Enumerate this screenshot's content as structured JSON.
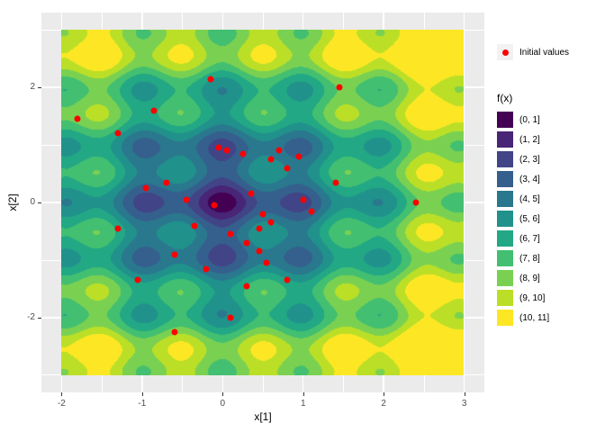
{
  "panel": {
    "background": "#EBEBEB",
    "grid_color": "#FFFFFF",
    "tick_color": "#333333",
    "tick_label_color": "#4D4D4D"
  },
  "chart_data": {
    "type": "heatmap",
    "subtype": "filled-contour",
    "title": "",
    "xlabel": "x[1]",
    "ylabel": "x[2]",
    "x_range": [
      -2,
      3
    ],
    "y_range": [
      -3,
      3
    ],
    "x_ticks": [
      {
        "v": -2,
        "label": "-2"
      },
      {
        "v": -1,
        "label": "-1"
      },
      {
        "v": 0,
        "label": "0"
      },
      {
        "v": 1,
        "label": "1"
      },
      {
        "v": 2,
        "label": "2"
      },
      {
        "v": 3,
        "label": "3"
      }
    ],
    "y_ticks": [
      {
        "v": -2,
        "label": "-2"
      },
      {
        "v": 0,
        "label": "0"
      },
      {
        "v": 2,
        "label": "2"
      }
    ],
    "x_minor": [
      -1.5,
      -0.5,
      0.5,
      1.5,
      2.5
    ],
    "y_minor": [
      -3,
      -1,
      1,
      3
    ],
    "surface_function_approx": "f(x) = 2.5*sqrt(x1^2+x2^2) + 1.0*(2 - cos(2*pi*x1) - cos(2*pi*x2)); minimum 0 at origin, local dimples at integer grid points, values banded into unit intervals (0,1] ... (10,11]",
    "legend_title": "f(x)",
    "levels": [
      {
        "label": "(0, 1]",
        "color": "#440154"
      },
      {
        "label": "(1, 2]",
        "color": "#482576"
      },
      {
        "label": "(2, 3]",
        "color": "#414487"
      },
      {
        "label": "(3, 4]",
        "color": "#35608D"
      },
      {
        "label": "(4, 5]",
        "color": "#2A788E"
      },
      {
        "label": "(5, 6]",
        "color": "#21918C"
      },
      {
        "label": "(6, 7]",
        "color": "#22A884"
      },
      {
        "label": "(7, 8]",
        "color": "#43BF71"
      },
      {
        "label": "(8, 9]",
        "color": "#7AD151"
      },
      {
        "label": "(9, 10]",
        "color": "#BBDF27"
      },
      {
        "label": "(10, 11]",
        "color": "#FDE725"
      }
    ],
    "points": {
      "label": "Initial values",
      "color": "#FF0000",
      "xy": [
        [
          -1.8,
          1.45
        ],
        [
          -1.3,
          1.2
        ],
        [
          -0.85,
          1.6
        ],
        [
          -0.15,
          2.15
        ],
        [
          1.45,
          2.0
        ],
        [
          -0.05,
          0.95
        ],
        [
          0.05,
          0.9
        ],
        [
          0.25,
          0.85
        ],
        [
          0.6,
          0.75
        ],
        [
          0.7,
          0.9
        ],
        [
          0.8,
          0.6
        ],
        [
          0.95,
          0.8
        ],
        [
          -0.7,
          0.35
        ],
        [
          -0.95,
          0.25
        ],
        [
          1.4,
          0.35
        ],
        [
          0.35,
          0.15
        ],
        [
          2.4,
          0.0
        ],
        [
          -0.1,
          -0.05
        ],
        [
          -0.45,
          0.05
        ],
        [
          0.5,
          -0.2
        ],
        [
          0.6,
          -0.35
        ],
        [
          0.45,
          -0.45
        ],
        [
          1.0,
          0.05
        ],
        [
          1.1,
          -0.15
        ],
        [
          -1.3,
          -0.45
        ],
        [
          -0.35,
          -0.4
        ],
        [
          0.1,
          -0.55
        ],
        [
          0.3,
          -0.7
        ],
        [
          -0.6,
          -0.9
        ],
        [
          0.45,
          -0.85
        ],
        [
          0.55,
          -1.05
        ],
        [
          -0.2,
          -1.15
        ],
        [
          -1.05,
          -1.35
        ],
        [
          0.8,
          -1.35
        ],
        [
          0.3,
          -1.45
        ],
        [
          0.1,
          -2.0
        ],
        [
          -0.6,
          -2.25
        ]
      ]
    }
  }
}
